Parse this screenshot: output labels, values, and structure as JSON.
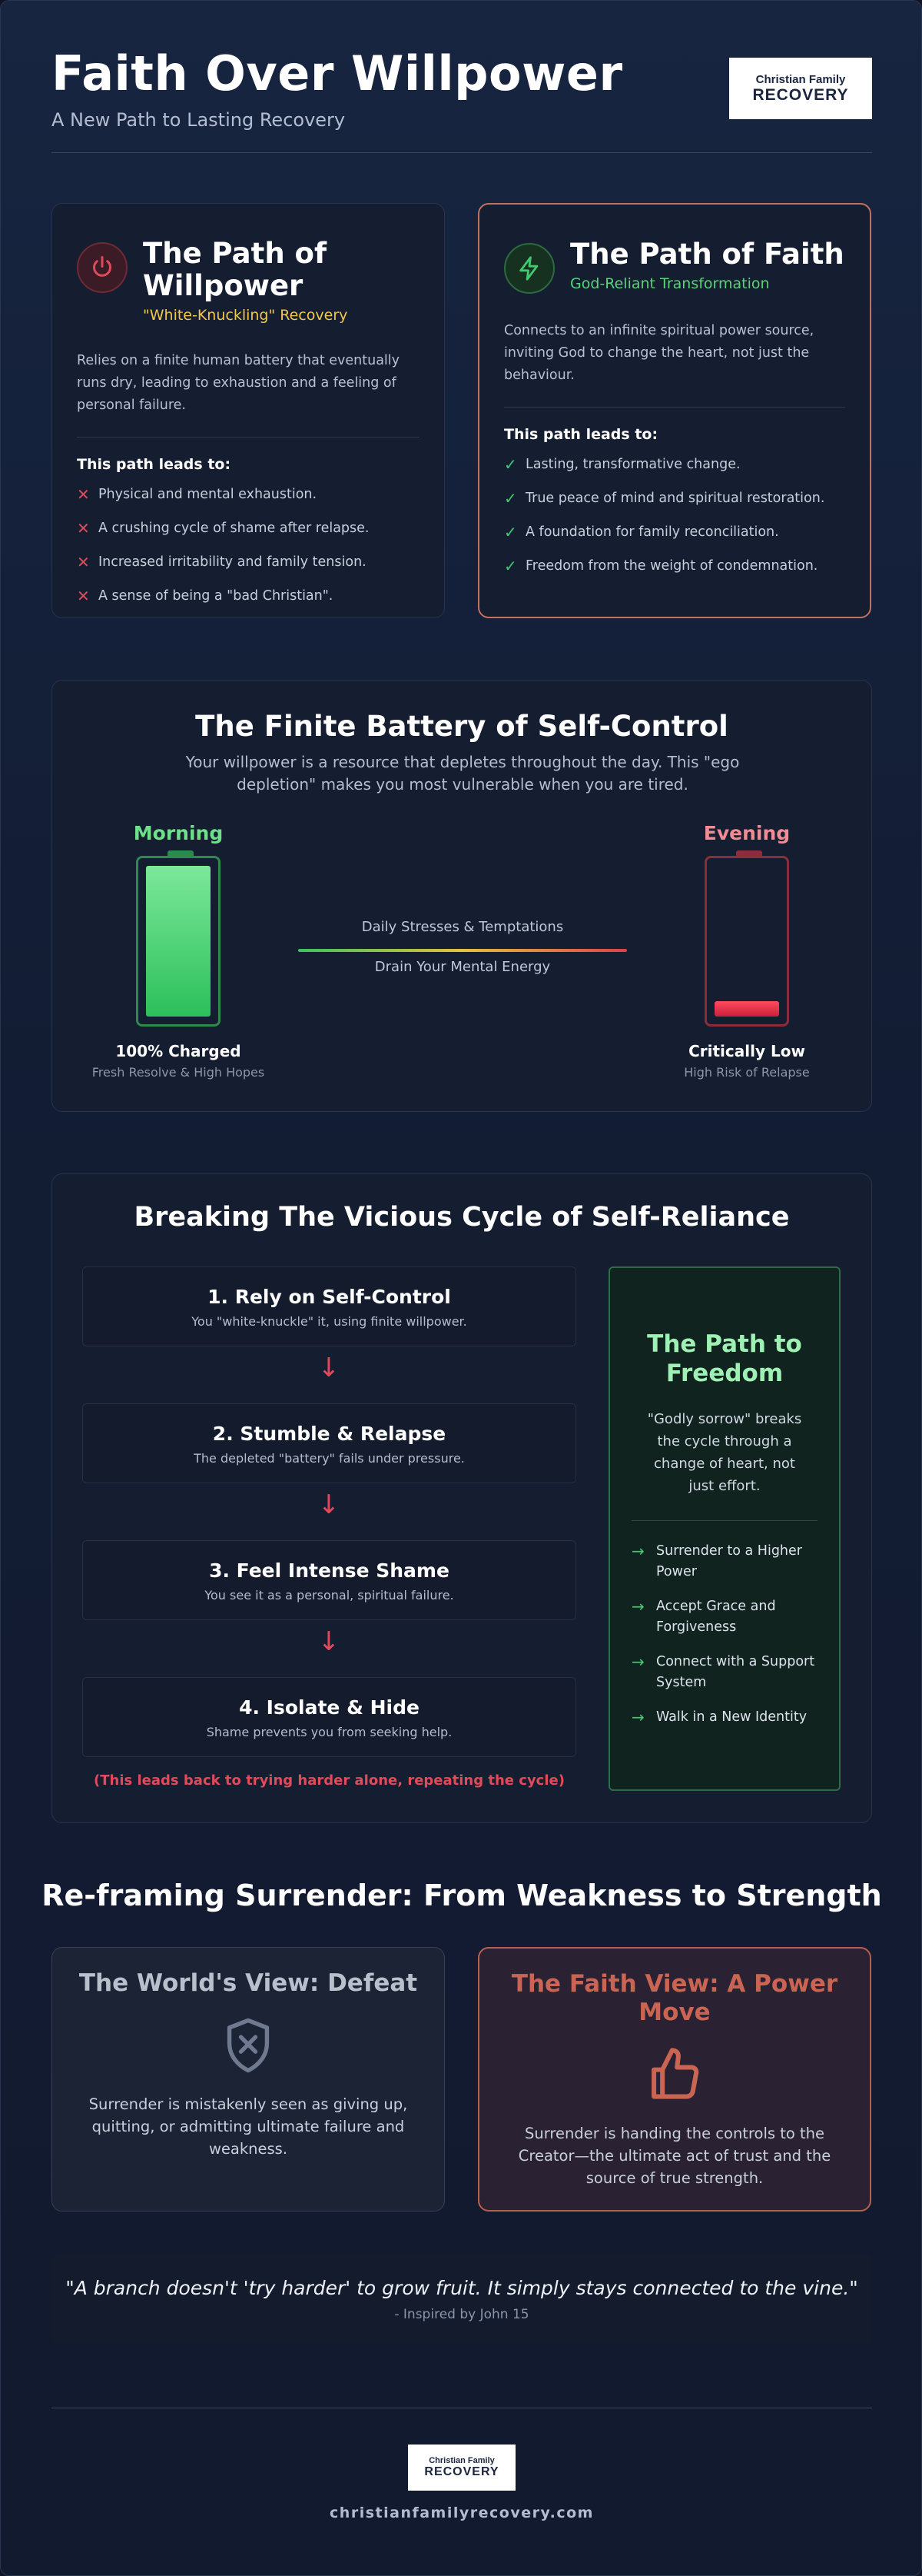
{
  "header": {
    "title": "Faith Over Willpower",
    "subtitle": "A New Path to Lasting Recovery"
  },
  "logo": {
    "line1": "Christian Family",
    "line2": "RECOVERY"
  },
  "willpower": {
    "icon": "power-icon",
    "accent": "#e04a5a",
    "title": "The Path of Willpower",
    "tagline": "\"White-Knuckling\" Recovery",
    "description": "Relies on a finite human battery that eventually runs dry, leading to exhaustion and a feeling of personal failure.",
    "leads_label": "This path leads to:",
    "items": [
      "Physical and mental exhaustion.",
      "A crushing cycle of shame after relapse.",
      "Increased irritability and family tension.",
      "A sense of being a \"bad Christian\"."
    ]
  },
  "faith": {
    "icon": "lightning-icon",
    "accent": "#42c870",
    "title": "The Path of Faith",
    "tagline": "God-Reliant Transformation",
    "description": "Connects to an infinite spiritual power source, inviting God to change the heart, not just the behaviour.",
    "leads_label": "This path leads to:",
    "items": [
      "Lasting, transformative change.",
      "True peace of mind and spiritual restoration.",
      "A foundation for family reconciliation.",
      "Freedom from the weight of condemnation."
    ]
  },
  "battery": {
    "title": "The Finite Battery of Self-Control",
    "description": "Your willpower is a resource that depletes throughout the day. This \"ego depletion\" makes you most vulnerable when you are tired.",
    "morning": {
      "label": "Morning",
      "status": "100% Charged",
      "sub": "Fresh Resolve & High Hopes",
      "level": 1.0
    },
    "evening": {
      "label": "Evening",
      "status": "Critically Low",
      "sub": "High Risk of Relapse",
      "level": 0.1
    },
    "drain_top": "Daily Stresses & Temptations",
    "drain_bottom": "Drain Your Mental Energy"
  },
  "cycle": {
    "title": "Breaking The Vicious Cycle of Self-Reliance",
    "steps": [
      {
        "title": "1. Rely on Self-Control",
        "desc": "You \"white-knuckle\" it, using finite willpower."
      },
      {
        "title": "2. Stumble & Relapse",
        "desc": "The depleted \"battery\" fails under pressure."
      },
      {
        "title": "3. Feel Intense Shame",
        "desc": "You see it as a personal, spiritual failure."
      },
      {
        "title": "4. Isolate & Hide",
        "desc": "Shame prevents you from seeking help."
      }
    ],
    "note": "(This leads back to trying harder alone, repeating the cycle)",
    "freedom": {
      "title": "The Path to Freedom",
      "description": "\"Godly sorrow\" breaks the cycle through a change of heart, not just effort.",
      "items": [
        "Surrender to a Higher Power",
        "Accept Grace and Forgiveness",
        "Connect with a Support System",
        "Walk in a New Identity"
      ]
    }
  },
  "surrender": {
    "title": "Re-framing Surrender: From Weakness to Strength",
    "world": {
      "icon": "shield-x-icon",
      "title": "The World's View: Defeat",
      "description": "Surrender is mistakenly seen as giving up, quitting, or admitting ultimate failure and weakness."
    },
    "faith": {
      "icon": "thumbs-up-icon",
      "title": "The Faith View: A Power Move",
      "description": "Surrender is handing the controls to the Creator—the ultimate act of trust and the source of true strength."
    }
  },
  "quote": {
    "text": "\"A branch doesn't 'try harder' to grow fruit. It simply stays connected to the vine.\"",
    "source": "- Inspired by John 15"
  },
  "footer": {
    "website": "christianfamilyrecovery.com"
  }
}
